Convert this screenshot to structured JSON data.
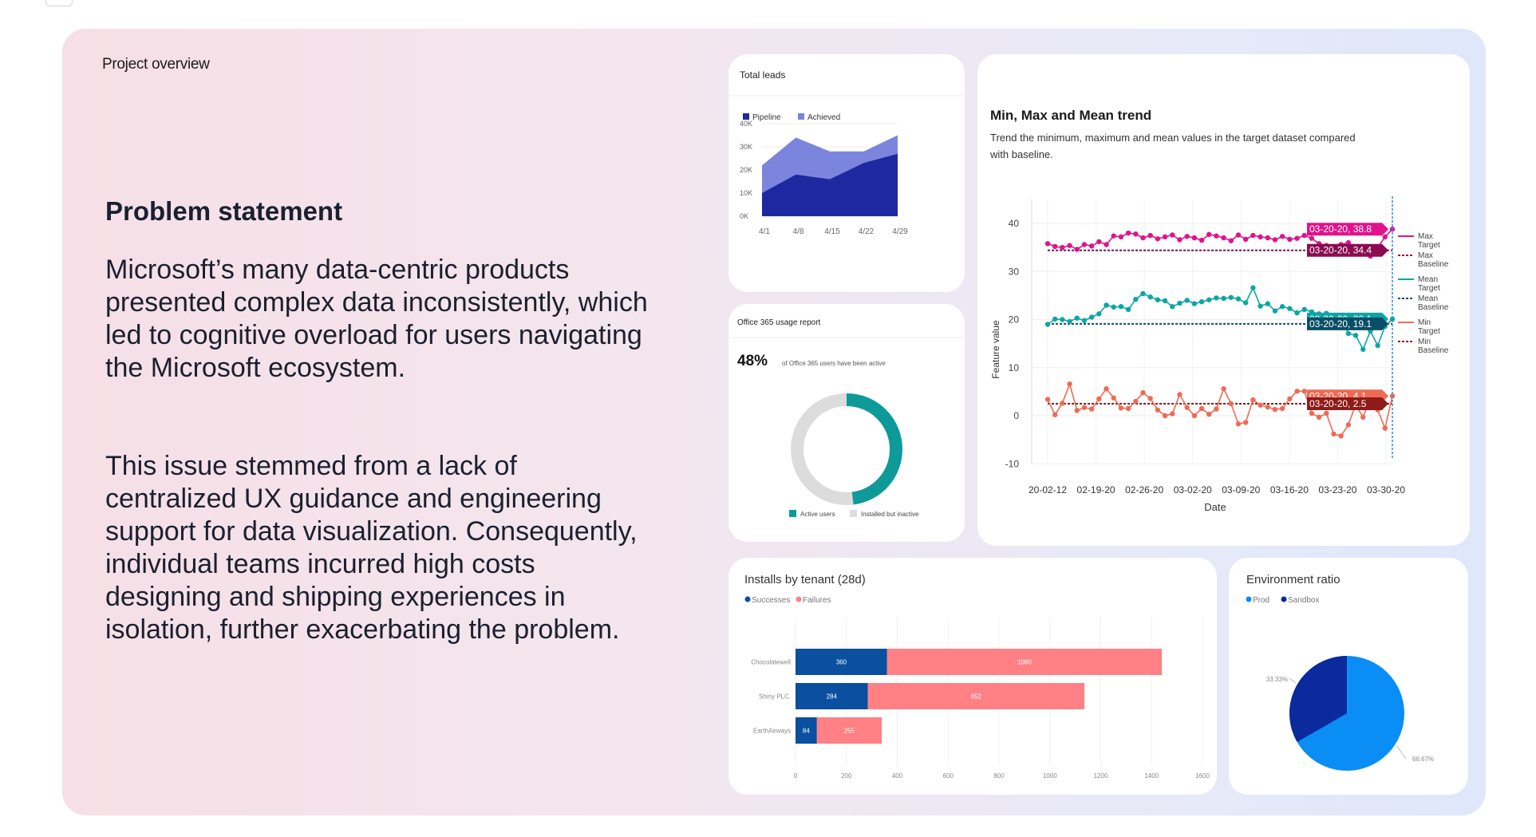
{
  "panel": {
    "label": "Project overview",
    "problem_title": "Problem statement",
    "paragraph_1": "Microsoft’s many data-centric products presented complex data inconsistently, which led to cognitive overload for users navigating the Microsoft ecosystem.",
    "paragraph_2": "This issue stemmed from a lack of centralized UX guidance and engineering support for data visualization. Consequently, individual teams incurred high costs designing and shipping experiences in isolation, further exacerbating the problem."
  },
  "colors": {
    "pipeline": "#1e28a0",
    "achieved": "#7b85dd",
    "teal": "#0f9a9a",
    "inactive": "#dcdcdc",
    "max_line": "#e0138c",
    "max_baseline": "#8a0b52",
    "mean_line": "#0ea5a5",
    "mean_baseline": "#0a4e66",
    "min_line": "#ef6a55",
    "min_baseline": "#8e1a1a",
    "successes": "#0a4fa0",
    "failures": "#ff8085",
    "prod": "#0a8ef6",
    "sandbox": "#0b2a9e"
  },
  "chart_data": [
    {
      "type": "area",
      "title": "Total leads",
      "categories": [
        "4/1",
        "4/8",
        "4/15",
        "4/22",
        "4/29"
      ],
      "series": [
        {
          "name": "Pipeline",
          "values": [
            10000,
            18000,
            16000,
            23000,
            27000
          ]
        },
        {
          "name": "Achieved",
          "values": [
            22000,
            34000,
            28000,
            28000,
            35000
          ]
        }
      ],
      "y_ticks": [
        "40K",
        "30K",
        "20K",
        "10K",
        "0K"
      ],
      "ylim": [
        0,
        40000
      ]
    },
    {
      "type": "pie",
      "title": "Office 365 usage report",
      "headline_value": "48%",
      "headline_text": "of Office 365 users have been active",
      "slices": [
        {
          "name": "Installed but inactive",
          "value": 52
        },
        {
          "name": "Active users",
          "value": 48
        }
      ],
      "legend": [
        "Active users",
        "Installed but inactive"
      ]
    },
    {
      "type": "line",
      "title": "Min, Max and Mean trend",
      "subtitle_line1": "Trend the minimum, maximum and mean values in the target dataset compared",
      "subtitle_line2": "with baseline.",
      "xlabel": "Date",
      "ylabel": "Feature value",
      "ylim": [
        -10,
        45
      ],
      "y_ticks": [
        "40",
        "30",
        "20",
        "10",
        "0",
        "-10"
      ],
      "x_ticks": [
        "20-02-12",
        "02-19-20",
        "02-26-20",
        "03-02-20",
        "03-09-20",
        "03-16-20",
        "03-23-20",
        "03-30-20"
      ],
      "series": [
        {
          "name": "Max Target",
          "values": [
            35.8,
            35.2,
            35.0,
            35.4,
            34.6,
            35.6,
            35.3,
            36.2,
            35.6,
            37.4,
            37.2,
            38.0,
            37.8,
            37.0,
            37.5,
            36.8,
            37.2,
            37.6,
            36.6,
            37.3,
            37.0,
            36.5,
            37.7,
            37.4,
            37.0,
            36.4,
            37.6,
            36.7,
            37.5,
            37.2,
            37.0,
            36.6,
            37.3,
            36.7,
            36.9,
            37.5,
            36.9,
            35.8,
            35.4,
            34.5,
            35.6,
            36.0,
            34.8,
            35.2,
            33.2,
            35.0,
            37.2,
            38.8
          ]
        },
        {
          "name": "Mean Target",
          "values": [
            19.0,
            20.1,
            20.0,
            19.6,
            20.3,
            19.8,
            20.5,
            21.2,
            23.0,
            22.6,
            22.7,
            22.1,
            24.2,
            25.4,
            24.7,
            24.1,
            23.9,
            22.7,
            23.4,
            24.0,
            23.3,
            23.7,
            24.1,
            24.5,
            24.4,
            24.6,
            24.3,
            23.5,
            26.6,
            22.8,
            23.3,
            21.8,
            22.7,
            22.3,
            21.4,
            22.1,
            21.6,
            21.2,
            21.3,
            20.4,
            20.6,
            17.1,
            16.7,
            13.8,
            17.6,
            14.6,
            18.6,
            20.1
          ]
        },
        {
          "name": "Min Target",
          "values": [
            3.4,
            0.2,
            2.6,
            6.6,
            1.1,
            1.7,
            1.4,
            3.5,
            5.6,
            3.7,
            1.6,
            1.5,
            3.0,
            4.8,
            3.6,
            1.2,
            0.0,
            0.4,
            4.4,
            1.7,
            0.0,
            1.5,
            0.3,
            1.4,
            5.6,
            2.5,
            -1.7,
            -1.4,
            3.3,
            2.2,
            1.8,
            1.3,
            1.5,
            3.5,
            5.1,
            5.1,
            0.5,
            -0.3,
            0.5,
            -3.8,
            -4.2,
            -1.9,
            2.3,
            -0.3,
            3.5,
            1.2,
            -2.6,
            4.1
          ]
        },
        {
          "name": "Max Baseline",
          "values": [
            34.4
          ]
        },
        {
          "name": "Mean Baseline",
          "values": [
            19.1
          ]
        },
        {
          "name": "Min Baseline",
          "values": [
            2.5
          ]
        }
      ],
      "callouts": [
        "03-20-20, 38.8",
        "03-20-20, 34.4",
        "03-20-20, 20.1",
        "03-20-20, 19.1",
        "03-20-20, 4.1",
        "03-20-20, 2.5"
      ],
      "legend": [
        {
          "line1": "Max",
          "line2": "Target"
        },
        {
          "line1": "Max",
          "line2": "Baseline"
        },
        {
          "line1": "Mean",
          "line2": "Target"
        },
        {
          "line1": "Mean",
          "line2": "Baseline"
        },
        {
          "line1": "Min",
          "line2": "Target"
        },
        {
          "line1": "Min",
          "line2": "Baseline"
        }
      ]
    },
    {
      "type": "bar",
      "orientation": "horizontal",
      "stacked": true,
      "title": "Installs by tenant (28d)",
      "categories": [
        "Chocolatewell",
        "Shiny PLC.",
        "EarthAirways"
      ],
      "series": [
        {
          "name": "Successes",
          "values": [
            360,
            284,
            84
          ]
        },
        {
          "name": "Failures",
          "values": [
            1080,
            852,
            255
          ]
        }
      ],
      "x_ticks": [
        "0",
        "200",
        "400",
        "600",
        "800",
        "1000",
        "1200",
        "1400",
        "1600"
      ],
      "xlim": [
        0,
        1600
      ]
    },
    {
      "type": "pie",
      "title": "Environment ratio",
      "slices": [
        {
          "name": "Sandbox",
          "value": 33.33,
          "label": "33.33%"
        },
        {
          "name": "Prod",
          "value": 66.67,
          "label": "66.67%"
        }
      ],
      "legend": [
        "Prod",
        "Sandbox"
      ]
    }
  ]
}
